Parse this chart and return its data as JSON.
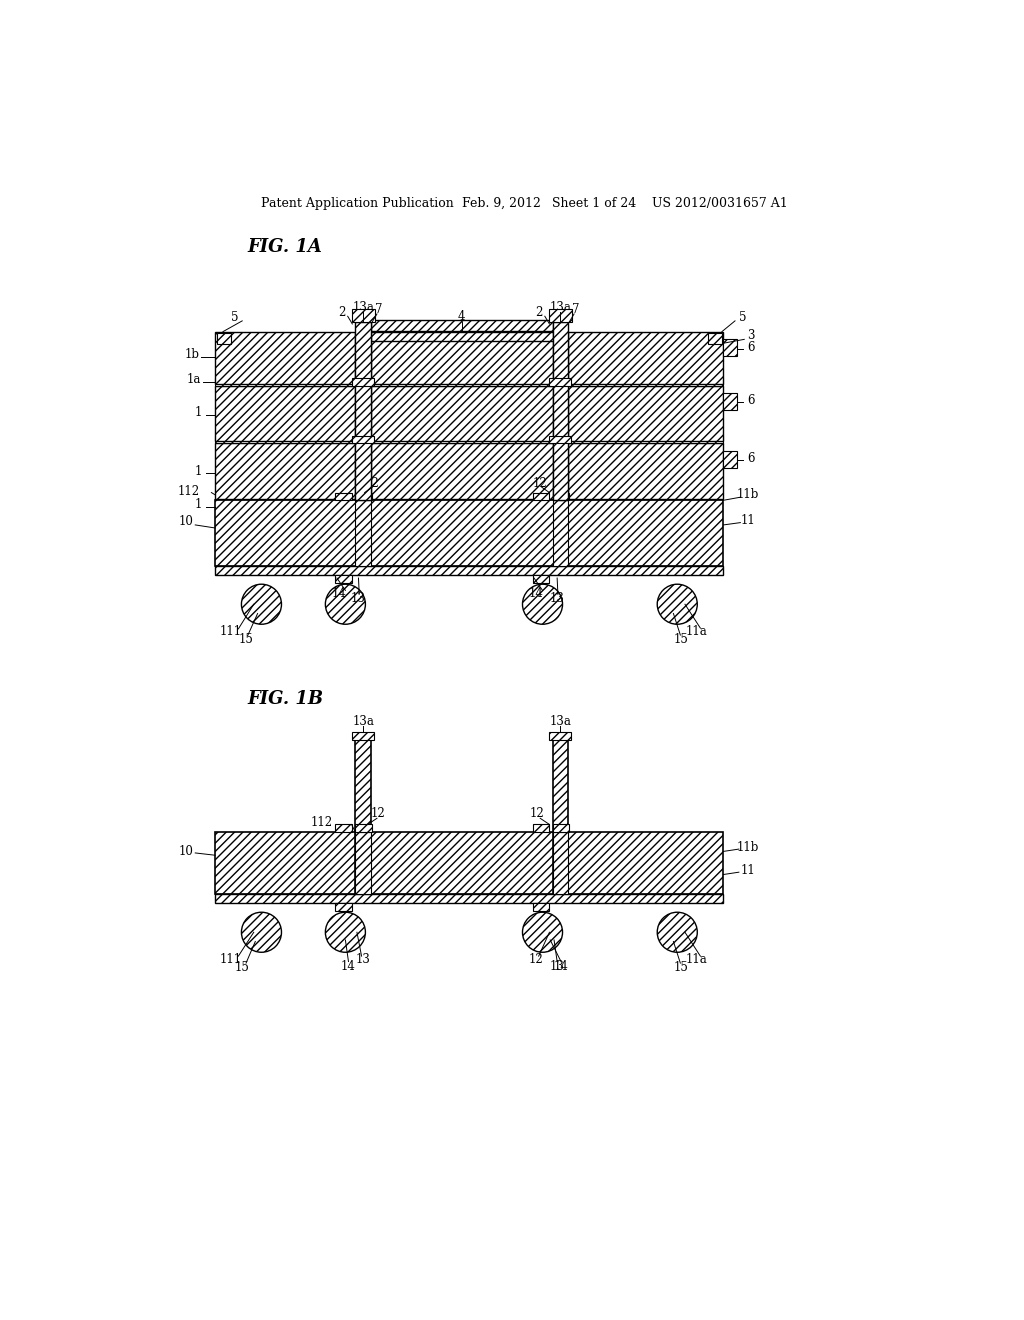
{
  "title_line1": "Patent Application Publication",
  "title_line2": "Feb. 9, 2012",
  "title_line3": "Sheet 1 of 24",
  "title_line4": "US 2012/0031657 A1",
  "fig1a_label": "FIG. 1A",
  "fig1b_label": "FIG. 1B",
  "bg_color": "#ffffff",
  "line_color": "#000000"
}
